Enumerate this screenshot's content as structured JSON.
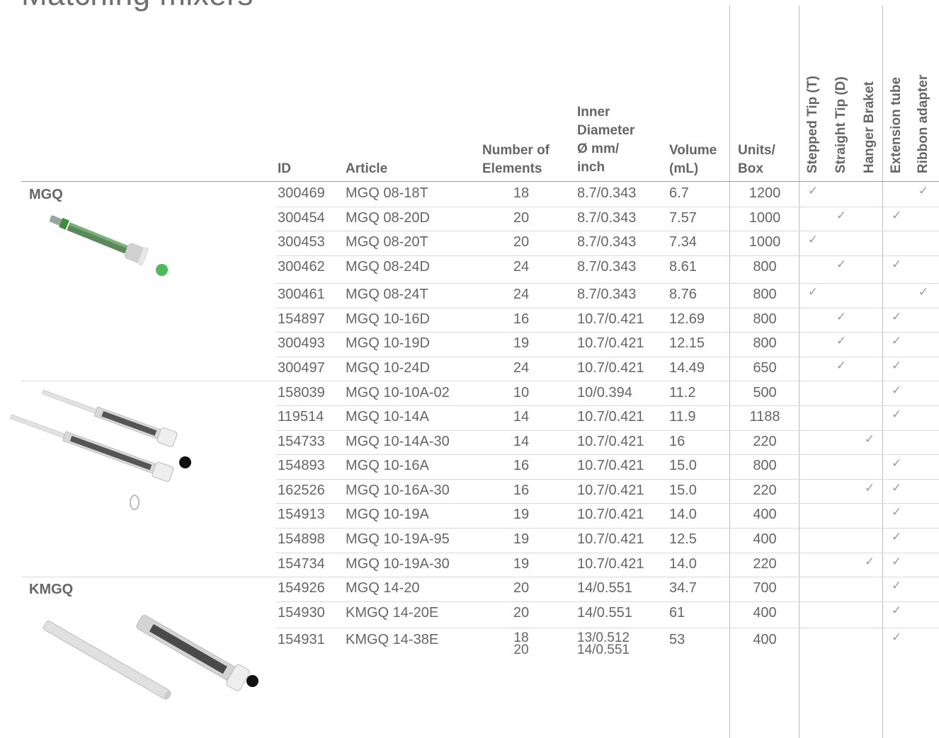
{
  "title": "Matching mixers",
  "columns": {
    "id": "ID",
    "article": "Article",
    "elements": "Number of\nElements",
    "diameter": "Inner\nDiameter\nØ mm/\ninch",
    "volume": "Volume\n(mL)",
    "units": "Units/\nBox",
    "stepped": "Stepped Tip (T)",
    "straight": "Straight Tip (D)",
    "hanger": "Hanger Braket",
    "extension": "Extension tube",
    "ribbon": "Ribbon adapter"
  },
  "groups": [
    {
      "label": "MGQ",
      "dot_color": "#4db85c"
    },
    {
      "label": "",
      "dot_color": "#111111"
    },
    {
      "label": "KMGQ",
      "dot_color": "#111111"
    }
  ],
  "rows": [
    {
      "id": "300469",
      "article": "MGQ 08-18T",
      "elements": "18",
      "diameter": "8.7/0.343",
      "volume": "6.7",
      "units": "1200",
      "checks": [
        1,
        0,
        0,
        0,
        1
      ]
    },
    {
      "id": "300454",
      "article": "MGQ 08-20D",
      "elements": "20",
      "diameter": "8.7/0.343",
      "volume": "7.57",
      "units": "1000",
      "checks": [
        0,
        1,
        0,
        1,
        0
      ]
    },
    {
      "id": "300453",
      "article": "MGQ 08-20T",
      "elements": "20",
      "diameter": "8.7/0.343",
      "volume": "7.34",
      "units": "1000",
      "checks": [
        1,
        0,
        0,
        0,
        0
      ]
    },
    {
      "id": "300462",
      "article": "MGQ 08-24D",
      "elements": "24",
      "diameter": "8.7/0.343",
      "volume": "8.61",
      "units": "800",
      "checks": [
        0,
        1,
        0,
        1,
        0
      ]
    },
    {
      "id": "300461",
      "article": "MGQ 08-24T",
      "elements": "24",
      "diameter": "8.7/0.343",
      "volume": "8.76",
      "units": "800",
      "checks": [
        1,
        0,
        0,
        0,
        1
      ]
    },
    {
      "id": "154897",
      "article": "MGQ 10-16D",
      "elements": "16",
      "diameter": "10.7/0.421",
      "volume": "12.69",
      "units": "800",
      "checks": [
        0,
        1,
        0,
        1,
        0
      ]
    },
    {
      "id": "300493",
      "article": "MGQ 10-19D",
      "elements": "19",
      "diameter": "10.7/0.421",
      "volume": "12.15",
      "units": "800",
      "checks": [
        0,
        1,
        0,
        1,
        0
      ]
    },
    {
      "id": "300497",
      "article": "MGQ 10-24D",
      "elements": "24",
      "diameter": "10.7/0.421",
      "volume": "14.49",
      "units": "650",
      "checks": [
        0,
        1,
        0,
        1,
        0
      ]
    },
    {
      "id": "158039",
      "article": "MGQ 10-10A-02",
      "elements": "10",
      "diameter": "10/0.394",
      "volume": "11.2",
      "units": "500",
      "checks": [
        0,
        0,
        0,
        1,
        0
      ]
    },
    {
      "id": "119514",
      "article": "MGQ 10-14A",
      "elements": "14",
      "diameter": "10.7/0.421",
      "volume": "11.9",
      "units": "1188",
      "checks": [
        0,
        0,
        0,
        1,
        0
      ]
    },
    {
      "id": "154733",
      "article": "MGQ 10-14A-30",
      "elements": "14",
      "diameter": "10.7/0.421",
      "volume": "16",
      "units": "220",
      "checks": [
        0,
        0,
        1,
        0,
        0
      ]
    },
    {
      "id": "154893",
      "article": "MGQ 10-16A",
      "elements": "16",
      "diameter": "10.7/0.421",
      "volume": "15.0",
      "units": "800",
      "checks": [
        0,
        0,
        0,
        1,
        0
      ]
    },
    {
      "id": "162526",
      "article": "MGQ 10-16A-30",
      "elements": "16",
      "diameter": "10.7/0.421",
      "volume": "15.0",
      "units": "220",
      "checks": [
        0,
        0,
        1,
        1,
        0
      ]
    },
    {
      "id": "154913",
      "article": "MGQ 10-19A",
      "elements": "19",
      "diameter": "10.7/0.421",
      "volume": "14.0",
      "units": "400",
      "checks": [
        0,
        0,
        0,
        1,
        0
      ]
    },
    {
      "id": "154898",
      "article": "MGQ 10-19A-95",
      "elements": "19",
      "diameter": "10.7/0.421",
      "volume": "12.5",
      "units": "400",
      "checks": [
        0,
        0,
        0,
        1,
        0
      ]
    },
    {
      "id": "154734",
      "article": "MGQ 10-19A-30",
      "elements": "19",
      "diameter": "10.7/0.421",
      "volume": "14.0",
      "units": "220",
      "checks": [
        0,
        0,
        1,
        1,
        0
      ]
    },
    {
      "id": "154926",
      "article": "MGQ 14-20",
      "elements": "20",
      "diameter": "14/0.551",
      "volume": "34.7",
      "units": "700",
      "checks": [
        0,
        0,
        0,
        1,
        0
      ]
    },
    {
      "id": "154930",
      "article": "KMGQ 14-20E",
      "elements": "20",
      "diameter": "14/0.551",
      "volume": "61",
      "units": "400",
      "checks": [
        0,
        0,
        0,
        1,
        0
      ]
    },
    {
      "id": "154931",
      "article": "KMGQ 14-38E",
      "elements": "18\n20",
      "diameter": "13/0.512\n14/0.551",
      "volume": "53",
      "units": "400",
      "checks": [
        0,
        0,
        0,
        1,
        0
      ]
    }
  ],
  "check_mark": "✓"
}
